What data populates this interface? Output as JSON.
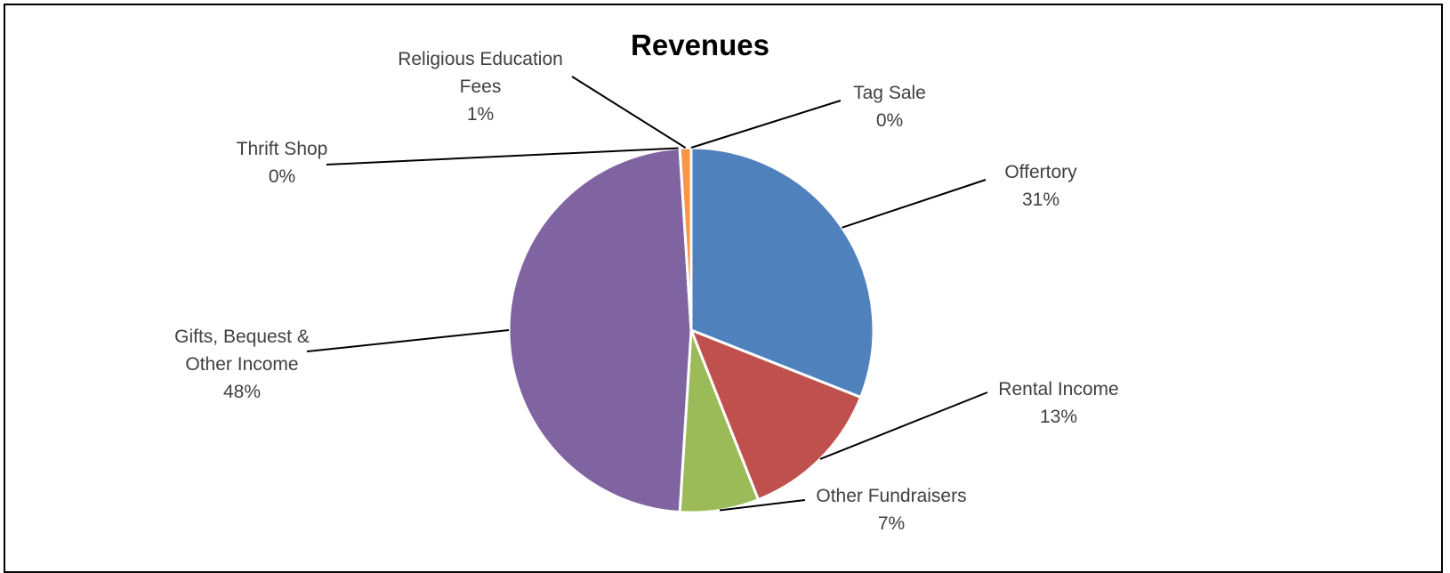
{
  "chart_data": {
    "type": "pie",
    "title": "Revenues",
    "categories": [
      "Offertory",
      "Rental Income",
      "Other Fundraisers",
      "Gifts, Bequest & Other Income",
      "Thrift Shop",
      "Religious Education Fees",
      "Tag Sale"
    ],
    "values": [
      31,
      13,
      7,
      48,
      0,
      1,
      0
    ],
    "value_labels": [
      "31%",
      "13%",
      "7%",
      "48%",
      "0%",
      "1%",
      "0%"
    ],
    "colors": [
      "#4f81bd",
      "#c0504d",
      "#9bbb59",
      "#8064a2",
      "#4bacc6",
      "#f79646",
      "#2c4d75"
    ]
  }
}
